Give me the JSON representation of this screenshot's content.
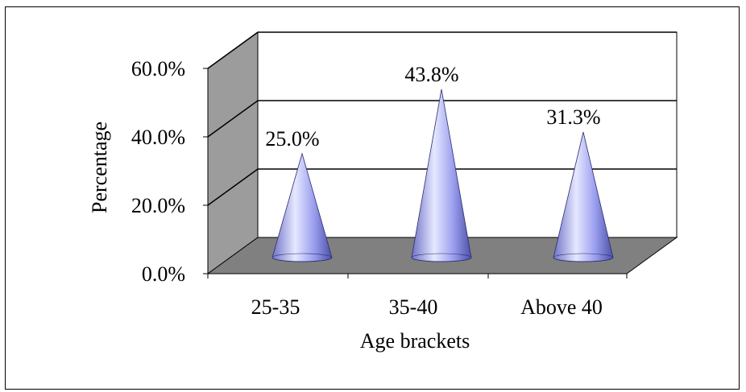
{
  "chart_data": {
    "type": "bar",
    "mark_shape": "cone",
    "title": "",
    "xlabel": "Age brackets",
    "ylabel": "Percentage",
    "categories": [
      "25-35",
      "35-40",
      "Above 40"
    ],
    "values": [
      25.0,
      43.8,
      31.3
    ],
    "data_labels": [
      "25.0%",
      "43.8%",
      "31.3%"
    ],
    "ylim": [
      0,
      60
    ],
    "yticks": [
      0,
      20,
      40,
      60
    ],
    "ytick_labels": [
      "0.0%",
      "20.0%",
      "40.0%",
      "60.0%"
    ],
    "grid": true,
    "legend": "none",
    "colors": {
      "cone_light": "#e6e8ff",
      "cone_mid": "#9a9eee",
      "cone_dark": "#4c50a8",
      "floor": "#808080",
      "side_wall": "#9c9c9c",
      "back_wall": "#ffffff"
    }
  }
}
